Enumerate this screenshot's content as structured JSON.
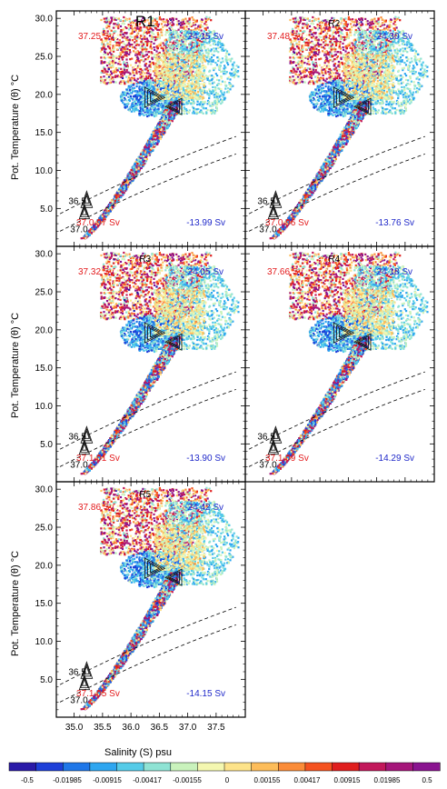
{
  "figure": {
    "ylabel": "Pot. Temperature (θ) °C",
    "xlabel": "Salinity (S) psu"
  },
  "chart_data": {
    "type": "heatmap",
    "x_ticks": [
      35.0,
      35.5,
      36.0,
      36.5,
      37.0,
      37.5
    ],
    "y_ticks": [
      5.0,
      10.0,
      15.0,
      20.0,
      25.0,
      30.0
    ],
    "xlim": [
      34.75,
      37.95
    ],
    "ylim": [
      0.5,
      30.5
    ],
    "density_contours": [
      "36.5",
      "37.0"
    ],
    "panels": [
      {
        "label": "R1",
        "top_left": "37.25 Sv",
        "top_right": "-24.15 Sv",
        "bottom_left": "37.0.97 Sv",
        "bottom_right": "-13.99 Sv"
      },
      {
        "label": "R2",
        "top_left": "37.48 Sv",
        "top_right": "-24.30 Sv",
        "bottom_left": "37.0.96 Sv",
        "bottom_right": "-13.76 Sv"
      },
      {
        "label": "R3",
        "top_left": "37.32 Sv",
        "top_right": "-24.05 Sv",
        "bottom_left": "37.1.01 Sv",
        "bottom_right": "-13.90 Sv"
      },
      {
        "label": "R4",
        "top_left": "37.66 Sv",
        "top_right": "-24.18 Sv",
        "bottom_left": "37.1.09 Sv",
        "bottom_right": "-14.29 Sv"
      },
      {
        "label": "R5",
        "top_left": "37.86 Sv",
        "top_right": "-24.42 Sv",
        "bottom_left": "37.1.05 Sv",
        "bottom_right": "-14.15 Sv"
      }
    ],
    "colorbar": {
      "labels": [
        "-0.5",
        "-0.01985",
        "-0.00915",
        "-0.00417",
        "-0.00155",
        "0",
        "0.00155",
        "0.00417",
        "0.00915",
        "0.01985",
        "0.5"
      ],
      "colors": [
        "#2a1aa8",
        "#1e3fd8",
        "#1f77e8",
        "#2ea6f0",
        "#55cbe8",
        "#8fe3d4",
        "#c9f2bc",
        "#f4f7b0",
        "#fde38a",
        "#fdbd5a",
        "#fb8c38",
        "#f5521f",
        "#e01e1e",
        "#c2185b",
        "#a5167a",
        "#8a1490"
      ]
    },
    "colors": {
      "sink_label": "#e31a1c",
      "source_label": "#1f28c9"
    }
  }
}
